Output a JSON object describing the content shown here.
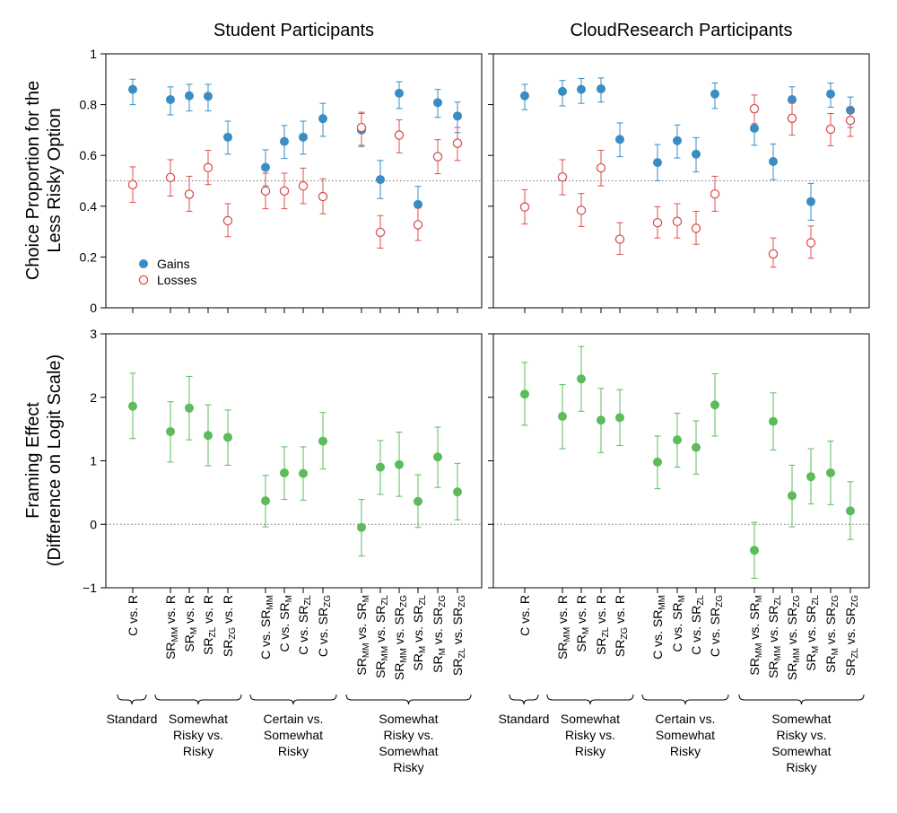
{
  "chart_data": {
    "type": "scatter",
    "columns": [
      {
        "title": "Student Participants"
      },
      {
        "title": "CloudResearch Participants"
      }
    ],
    "rows": [
      {
        "ylabel_lines": [
          "Choice Proportion for the",
          "Less Risky Option"
        ],
        "ylim": [
          0,
          1
        ],
        "yticks": [
          0,
          0.2,
          0.4,
          0.6,
          0.8,
          1
        ],
        "ytick_labels": [
          "0",
          "0.2",
          "0.4",
          "0.6",
          "0.8",
          "1"
        ],
        "reference_line": 0.5,
        "legend": {
          "position": "lower-left",
          "entries": [
            "Gains",
            "Losses"
          ]
        }
      },
      {
        "ylabel_lines": [
          "Framing Effect",
          "(Difference on Logit Scale)"
        ],
        "ylim": [
          -1,
          3
        ],
        "yticks": [
          -1,
          0,
          1,
          2,
          3
        ],
        "ytick_labels": [
          "−1",
          "0",
          "1",
          "2",
          "3"
        ],
        "reference_line": 0
      }
    ],
    "categories": [
      {
        "base": "C vs. R"
      },
      {
        "base": "SR",
        "sub": "MM",
        "rest": " vs. R"
      },
      {
        "base": "SR",
        "sub": "M",
        "rest": " vs. R"
      },
      {
        "base": "SR",
        "sub": "ZL",
        "rest": " vs. R"
      },
      {
        "base": "SR",
        "sub": "ZG",
        "rest": " vs. R"
      },
      {
        "base": "C vs. SR",
        "sub": "MM"
      },
      {
        "base": "C vs. SR",
        "sub": "M"
      },
      {
        "base": "C vs. SR",
        "sub": "ZL"
      },
      {
        "base": "C vs. SR",
        "sub": "ZG"
      },
      {
        "base": "SR",
        "sub": "MM",
        "rest": " vs. SR",
        "sub2": "M"
      },
      {
        "base": "SR",
        "sub": "MM",
        "rest": " vs. SR",
        "sub2": "ZL"
      },
      {
        "base": "SR",
        "sub": "MM",
        "rest": " vs. SR",
        "sub2": "ZG"
      },
      {
        "base": "SR",
        "sub": "M",
        "rest": " vs. SR",
        "sub2": "ZL"
      },
      {
        "base": "SR",
        "sub": "M",
        "rest": " vs. SR",
        "sub2": "ZG"
      },
      {
        "base": "SR",
        "sub": "ZL",
        "rest": " vs. SR",
        "sub2": "ZG"
      }
    ],
    "groups": [
      {
        "label_lines": [
          "Standard"
        ],
        "from": 0,
        "to": 0
      },
      {
        "label_lines": [
          "Somewhat",
          "Risky vs.",
          "Risky"
        ],
        "from": 1,
        "to": 4
      },
      {
        "label_lines": [
          "Certain vs.",
          "Somewhat",
          "Risky"
        ],
        "from": 5,
        "to": 8
      },
      {
        "label_lines": [
          "Somewhat",
          "Risky vs.",
          "Somewhat",
          "Risky"
        ],
        "from": 9,
        "to": 14
      }
    ],
    "series": {
      "student": {
        "gains": {
          "name": "Gains",
          "color": "#3a8cc4",
          "values": [
            0.86,
            0.82,
            0.835,
            0.833,
            0.672,
            0.553,
            0.655,
            0.672,
            0.745,
            0.7,
            0.505,
            0.845,
            0.407,
            0.808,
            0.755
          ],
          "lower": [
            0.8,
            0.76,
            0.775,
            0.775,
            0.605,
            0.48,
            0.588,
            0.605,
            0.675,
            0.635,
            0.43,
            0.785,
            0.338,
            0.75,
            0.69
          ],
          "upper": [
            0.9,
            0.87,
            0.88,
            0.88,
            0.735,
            0.622,
            0.718,
            0.735,
            0.805,
            0.765,
            0.58,
            0.89,
            0.478,
            0.86,
            0.81
          ]
        },
        "losses": {
          "name": "Losses",
          "color": "#d9534f",
          "values": [
            0.485,
            0.513,
            0.447,
            0.552,
            0.343,
            0.46,
            0.46,
            0.48,
            0.438,
            0.71,
            0.297,
            0.68,
            0.327,
            0.595,
            0.648
          ],
          "lower": [
            0.415,
            0.44,
            0.38,
            0.485,
            0.28,
            0.39,
            0.39,
            0.41,
            0.37,
            0.64,
            0.235,
            0.61,
            0.265,
            0.528,
            0.58
          ],
          "upper": [
            0.555,
            0.583,
            0.518,
            0.62,
            0.41,
            0.53,
            0.53,
            0.55,
            0.508,
            0.77,
            0.363,
            0.74,
            0.393,
            0.662,
            0.71
          ]
        },
        "effect": {
          "color": "#5cbb5c",
          "values": [
            1.86,
            1.46,
            1.83,
            1.4,
            1.37,
            0.37,
            0.81,
            0.8,
            1.31,
            -0.05,
            0.9,
            0.94,
            0.36,
            1.06,
            0.51
          ],
          "lower": [
            1.35,
            0.98,
            1.33,
            0.92,
            0.93,
            -0.04,
            0.39,
            0.38,
            0.87,
            -0.5,
            0.47,
            0.44,
            -0.05,
            0.58,
            0.07
          ],
          "upper": [
            2.38,
            1.93,
            2.33,
            1.88,
            1.8,
            0.77,
            1.22,
            1.22,
            1.76,
            0.39,
            1.32,
            1.45,
            0.78,
            1.53,
            0.96
          ]
        }
      },
      "cloudresearch": {
        "gains": {
          "name": "Gains",
          "color": "#3a8cc4",
          "values": [
            0.835,
            0.852,
            0.86,
            0.862,
            0.663,
            0.572,
            0.658,
            0.605,
            0.842,
            0.707,
            0.576,
            0.82,
            0.418,
            0.842,
            0.778
          ],
          "lower": [
            0.78,
            0.795,
            0.805,
            0.81,
            0.595,
            0.5,
            0.59,
            0.535,
            0.785,
            0.64,
            0.505,
            0.76,
            0.345,
            0.79,
            0.71
          ],
          "upper": [
            0.88,
            0.895,
            0.903,
            0.905,
            0.728,
            0.643,
            0.72,
            0.67,
            0.885,
            0.77,
            0.645,
            0.87,
            0.49,
            0.885,
            0.83
          ]
        },
        "losses": {
          "name": "Losses",
          "color": "#d9534f",
          "values": [
            0.397,
            0.515,
            0.384,
            0.551,
            0.27,
            0.335,
            0.34,
            0.313,
            0.448,
            0.784,
            0.212,
            0.746,
            0.256,
            0.703,
            0.738
          ],
          "lower": [
            0.33,
            0.445,
            0.32,
            0.48,
            0.21,
            0.275,
            0.275,
            0.25,
            0.38,
            0.725,
            0.16,
            0.68,
            0.195,
            0.638,
            0.675
          ],
          "upper": [
            0.465,
            0.583,
            0.45,
            0.62,
            0.335,
            0.398,
            0.41,
            0.38,
            0.518,
            0.838,
            0.275,
            0.806,
            0.322,
            0.765,
            0.79
          ]
        },
        "effect": {
          "color": "#5cbb5c",
          "values": [
            2.05,
            1.7,
            2.29,
            1.64,
            1.68,
            0.98,
            1.33,
            1.21,
            1.88,
            -0.41,
            1.62,
            0.45,
            0.75,
            0.81,
            0.21
          ],
          "lower": [
            1.56,
            1.19,
            1.78,
            1.13,
            1.24,
            0.56,
            0.9,
            0.79,
            1.39,
            -0.85,
            1.17,
            -0.04,
            0.32,
            0.31,
            -0.24
          ],
          "upper": [
            2.55,
            2.2,
            2.8,
            2.14,
            2.12,
            1.39,
            1.75,
            1.63,
            2.37,
            0.03,
            2.07,
            0.93,
            1.19,
            1.31,
            0.67
          ]
        }
      }
    }
  }
}
